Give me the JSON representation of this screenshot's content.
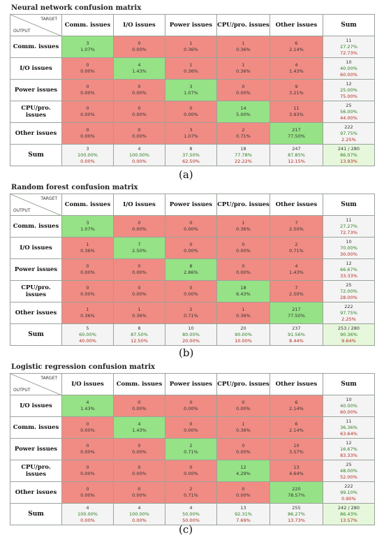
{
  "chart_data": [
    {
      "type": "table",
      "panel_label": "(a)",
      "title": "Neural network confusion matrix",
      "corner_target": "TARGET",
      "corner_output": "OUTPUT",
      "columns": [
        "Comm. issues",
        "I/O issues",
        "Power issues",
        "CPU/pro. issues",
        "Other issues",
        "Sum"
      ],
      "rows": [
        {
          "label": "Comm. issues",
          "cells": [
            {
              "count": "3",
              "pct": "1.07%"
            },
            {
              "count": "0",
              "pct": "0.00%"
            },
            {
              "count": "1",
              "pct": "0.36%"
            },
            {
              "count": "1",
              "pct": "0.36%"
            },
            {
              "count": "6",
              "pct": "2.14%"
            }
          ],
          "sum": {
            "count": "11",
            "good": "27.27%",
            "bad": "72.73%"
          }
        },
        {
          "label": "I/O issues",
          "cells": [
            {
              "count": "0",
              "pct": "0.00%"
            },
            {
              "count": "4",
              "pct": "1.43%"
            },
            {
              "count": "1",
              "pct": "0.36%"
            },
            {
              "count": "1",
              "pct": "0.36%"
            },
            {
              "count": "4",
              "pct": "1.43%"
            }
          ],
          "sum": {
            "count": "10",
            "good": "40.00%",
            "bad": "60.00%"
          }
        },
        {
          "label": "Power issues",
          "cells": [
            {
              "count": "0",
              "pct": "0.00%"
            },
            {
              "count": "0",
              "pct": "0.00%"
            },
            {
              "count": "3",
              "pct": "1.07%"
            },
            {
              "count": "0",
              "pct": "0.00%"
            },
            {
              "count": "9",
              "pct": "3.21%"
            }
          ],
          "sum": {
            "count": "12",
            "good": "25.00%",
            "bad": "75.00%"
          }
        },
        {
          "label": "CPU/pro. issues",
          "cells": [
            {
              "count": "0",
              "pct": "0.00%"
            },
            {
              "count": "0",
              "pct": "0.00%"
            },
            {
              "count": "0",
              "pct": "0.00%"
            },
            {
              "count": "14",
              "pct": "5.00%"
            },
            {
              "count": "11",
              "pct": "3.93%"
            }
          ],
          "sum": {
            "count": "25",
            "good": "56.00%",
            "bad": "44.00%"
          }
        },
        {
          "label": "Other issues",
          "cells": [
            {
              "count": "0",
              "pct": "0.00%"
            },
            {
              "count": "0",
              "pct": "0.00%"
            },
            {
              "count": "3",
              "pct": "1.07%"
            },
            {
              "count": "2",
              "pct": "0.71%"
            },
            {
              "count": "217",
              "pct": "77.50%"
            }
          ],
          "sum": {
            "count": "222",
            "good": "97.75%",
            "bad": "2.25%"
          }
        }
      ],
      "sum_row": {
        "label": "Sum",
        "cells": [
          {
            "count": "3",
            "good": "100.00%",
            "bad": "0.00%"
          },
          {
            "count": "4",
            "good": "100.00%",
            "bad": "0.00%"
          },
          {
            "count": "8",
            "good": "37.50%",
            "bad": "62.50%"
          },
          {
            "count": "18",
            "good": "77.78%",
            "bad": "22.22%"
          },
          {
            "count": "247",
            "good": "87.85%",
            "bad": "12.15%"
          }
        ],
        "total": {
          "count": "241 / 280",
          "good": "86.07%",
          "bad": "13.93%"
        }
      }
    },
    {
      "type": "table",
      "panel_label": "(b)",
      "title": "Random forest confusion matrix",
      "corner_target": "TARGET",
      "corner_output": "OUTPUT",
      "columns": [
        "Comm. issues",
        "I/O issues",
        "Power issues",
        "CPU/pro. issues",
        "Other issues",
        "Sum"
      ],
      "rows": [
        {
          "label": "Comm. issues",
          "cells": [
            {
              "count": "3",
              "pct": "1.07%"
            },
            {
              "count": "0",
              "pct": "0.00%"
            },
            {
              "count": "0",
              "pct": "0.00%"
            },
            {
              "count": "1",
              "pct": "0.36%"
            },
            {
              "count": "7",
              "pct": "2.50%"
            }
          ],
          "sum": {
            "count": "11",
            "good": "27.27%",
            "bad": "72.73%"
          }
        },
        {
          "label": "I/O issues",
          "cells": [
            {
              "count": "1",
              "pct": "0.36%"
            },
            {
              "count": "7",
              "pct": "2.50%"
            },
            {
              "count": "0",
              "pct": "0.00%"
            },
            {
              "count": "0",
              "pct": "0.00%"
            },
            {
              "count": "2",
              "pct": "0.71%"
            }
          ],
          "sum": {
            "count": "10",
            "good": "70.00%",
            "bad": "30.00%"
          }
        },
        {
          "label": "Power issues",
          "cells": [
            {
              "count": "0",
              "pct": "0.00%"
            },
            {
              "count": "0",
              "pct": "0.00%"
            },
            {
              "count": "8",
              "pct": "2.86%"
            },
            {
              "count": "0",
              "pct": "0.00%"
            },
            {
              "count": "4",
              "pct": "1.43%"
            }
          ],
          "sum": {
            "count": "12",
            "good": "66.67%",
            "bad": "33.33%"
          }
        },
        {
          "label": "CPU/pro. issues",
          "cells": [
            {
              "count": "0",
              "pct": "0.00%"
            },
            {
              "count": "0",
              "pct": "0.00%"
            },
            {
              "count": "0",
              "pct": "0.00%"
            },
            {
              "count": "18",
              "pct": "6.43%"
            },
            {
              "count": "7",
              "pct": "2.50%"
            }
          ],
          "sum": {
            "count": "25",
            "good": "72.00%",
            "bad": "28.00%"
          }
        },
        {
          "label": "Other issues",
          "cells": [
            {
              "count": "1",
              "pct": "0.36%"
            },
            {
              "count": "1",
              "pct": "0.36%"
            },
            {
              "count": "2",
              "pct": "0.71%"
            },
            {
              "count": "1",
              "pct": "0.36%"
            },
            {
              "count": "217",
              "pct": "77.50%"
            }
          ],
          "sum": {
            "count": "222",
            "good": "97.75%",
            "bad": "2.25%"
          }
        }
      ],
      "sum_row": {
        "label": "Sum",
        "cells": [
          {
            "count": "5",
            "good": "60.00%",
            "bad": "40.00%"
          },
          {
            "count": "8",
            "good": "87.50%",
            "bad": "12.50%"
          },
          {
            "count": "10",
            "good": "80.00%",
            "bad": "20.00%"
          },
          {
            "count": "20",
            "good": "90.00%",
            "bad": "10.00%"
          },
          {
            "count": "237",
            "good": "91.56%",
            "bad": "8.44%"
          }
        ],
        "total": {
          "count": "253 / 280",
          "good": "90.36%",
          "bad": "9.64%"
        }
      }
    },
    {
      "type": "table",
      "panel_label": "(c)",
      "title": "Logistic regression confusion matrix",
      "corner_target": "TARGET",
      "corner_output": "OUTPUT",
      "columns": [
        "I/O issues",
        "Comm. issues",
        "Power issues",
        "CPU/pro. issues",
        "Other issues",
        "Sum"
      ],
      "rows": [
        {
          "label": "I/O issues",
          "cells": [
            {
              "count": "4",
              "pct": "1.43%"
            },
            {
              "count": "0",
              "pct": "0.00%"
            },
            {
              "count": "0",
              "pct": "0.00%"
            },
            {
              "count": "0",
              "pct": "0.00%"
            },
            {
              "count": "6",
              "pct": "2.14%"
            }
          ],
          "sum": {
            "count": "10",
            "good": "40.00%",
            "bad": "60.00%"
          }
        },
        {
          "label": "Comm. issues",
          "cells": [
            {
              "count": "0",
              "pct": "0.00%"
            },
            {
              "count": "4",
              "pct": "1.43%"
            },
            {
              "count": "0",
              "pct": "0.00%"
            },
            {
              "count": "1",
              "pct": "0.36%"
            },
            {
              "count": "6",
              "pct": "2.14%"
            }
          ],
          "sum": {
            "count": "11",
            "good": "36.36%",
            "bad": "63.64%"
          }
        },
        {
          "label": "Power issues",
          "cells": [
            {
              "count": "0",
              "pct": "0.00%"
            },
            {
              "count": "0",
              "pct": "0.00%"
            },
            {
              "count": "2",
              "pct": "0.71%"
            },
            {
              "count": "0",
              "pct": "0.00%"
            },
            {
              "count": "10",
              "pct": "3.57%"
            }
          ],
          "sum": {
            "count": "12",
            "good": "16.67%",
            "bad": "83.33%"
          }
        },
        {
          "label": "CPU/pro. issues",
          "cells": [
            {
              "count": "0",
              "pct": "0.00%"
            },
            {
              "count": "0",
              "pct": "0.00%"
            },
            {
              "count": "0",
              "pct": "0.00%"
            },
            {
              "count": "12",
              "pct": "4.29%"
            },
            {
              "count": "13",
              "pct": "4.64%"
            }
          ],
          "sum": {
            "count": "25",
            "good": "48.00%",
            "bad": "52.00%"
          }
        },
        {
          "label": "Other issues",
          "cells": [
            {
              "count": "0",
              "pct": "0.00%"
            },
            {
              "count": "0",
              "pct": "0.00%"
            },
            {
              "count": "2",
              "pct": "0.71%"
            },
            {
              "count": "0",
              "pct": "0.00%"
            },
            {
              "count": "220",
              "pct": "78.57%"
            }
          ],
          "sum": {
            "count": "222",
            "good": "99.10%",
            "bad": "0.90%"
          }
        }
      ],
      "sum_row": {
        "label": "Sum",
        "cells": [
          {
            "count": "4",
            "good": "100.00%",
            "bad": "0.00%"
          },
          {
            "count": "4",
            "good": "100.00%",
            "bad": "0.00%"
          },
          {
            "count": "4",
            "good": "50.00%",
            "bad": "50.00%"
          },
          {
            "count": "13",
            "good": "92.31%",
            "bad": "7.69%"
          },
          {
            "count": "255",
            "good": "86.27%",
            "bad": "13.73%"
          }
        ],
        "total": {
          "count": "242 / 280",
          "good": "86.43%",
          "bad": "13.57%"
        }
      }
    }
  ]
}
